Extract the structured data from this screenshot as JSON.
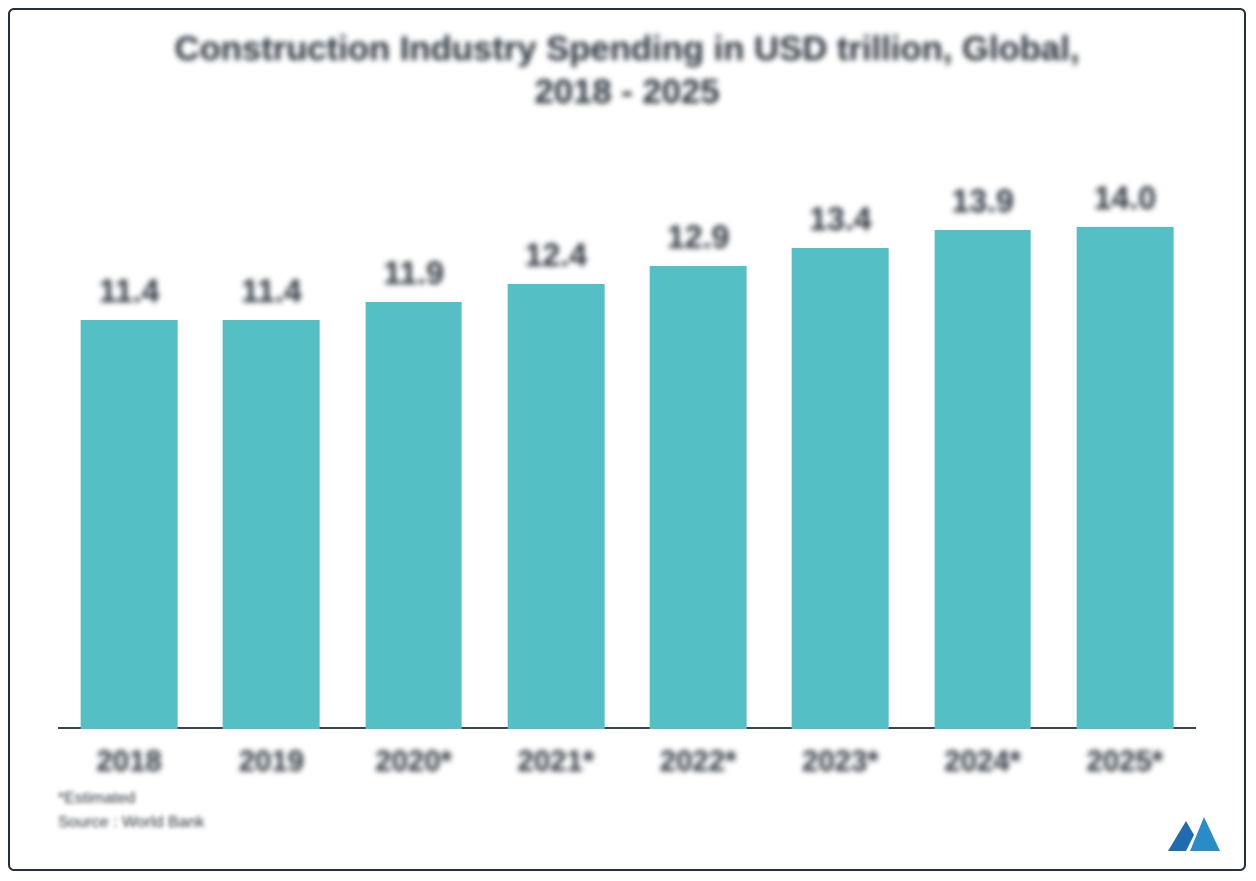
{
  "chart": {
    "type": "bar",
    "title_line1": "Construction Industry Spending in USD trillion, Global,",
    "title_line2": "2018 - 2025",
    "title_fontsize_pt": 26,
    "categories": [
      "2018",
      "2019",
      "2020*",
      "2021*",
      "2022*",
      "2023*",
      "2024*",
      "2025*"
    ],
    "values": [
      11.4,
      11.4,
      11.9,
      12.4,
      12.9,
      13.4,
      13.9,
      14.0
    ],
    "value_labels": [
      "11.4",
      "11.4",
      "11.9",
      "12.4",
      "12.9",
      "13.4",
      "13.9",
      "14.0"
    ],
    "value_label_fontsize_pt": 24,
    "x_label_fontsize_pt": 22,
    "bar_color": "#54bfc5",
    "bar_width_ratio": 0.68,
    "ylim": [
      0,
      16
    ],
    "background_color": "#ffffff",
    "border_color": "#26303a",
    "baseline_color": "#3a4550",
    "footnote1": "*Estimated",
    "footnote2": "Source : World Bank",
    "footnote_fontsize_pt": 12,
    "logo_color_primary": "#1f6bb0",
    "logo_color_secondary": "#2a8cc7"
  }
}
